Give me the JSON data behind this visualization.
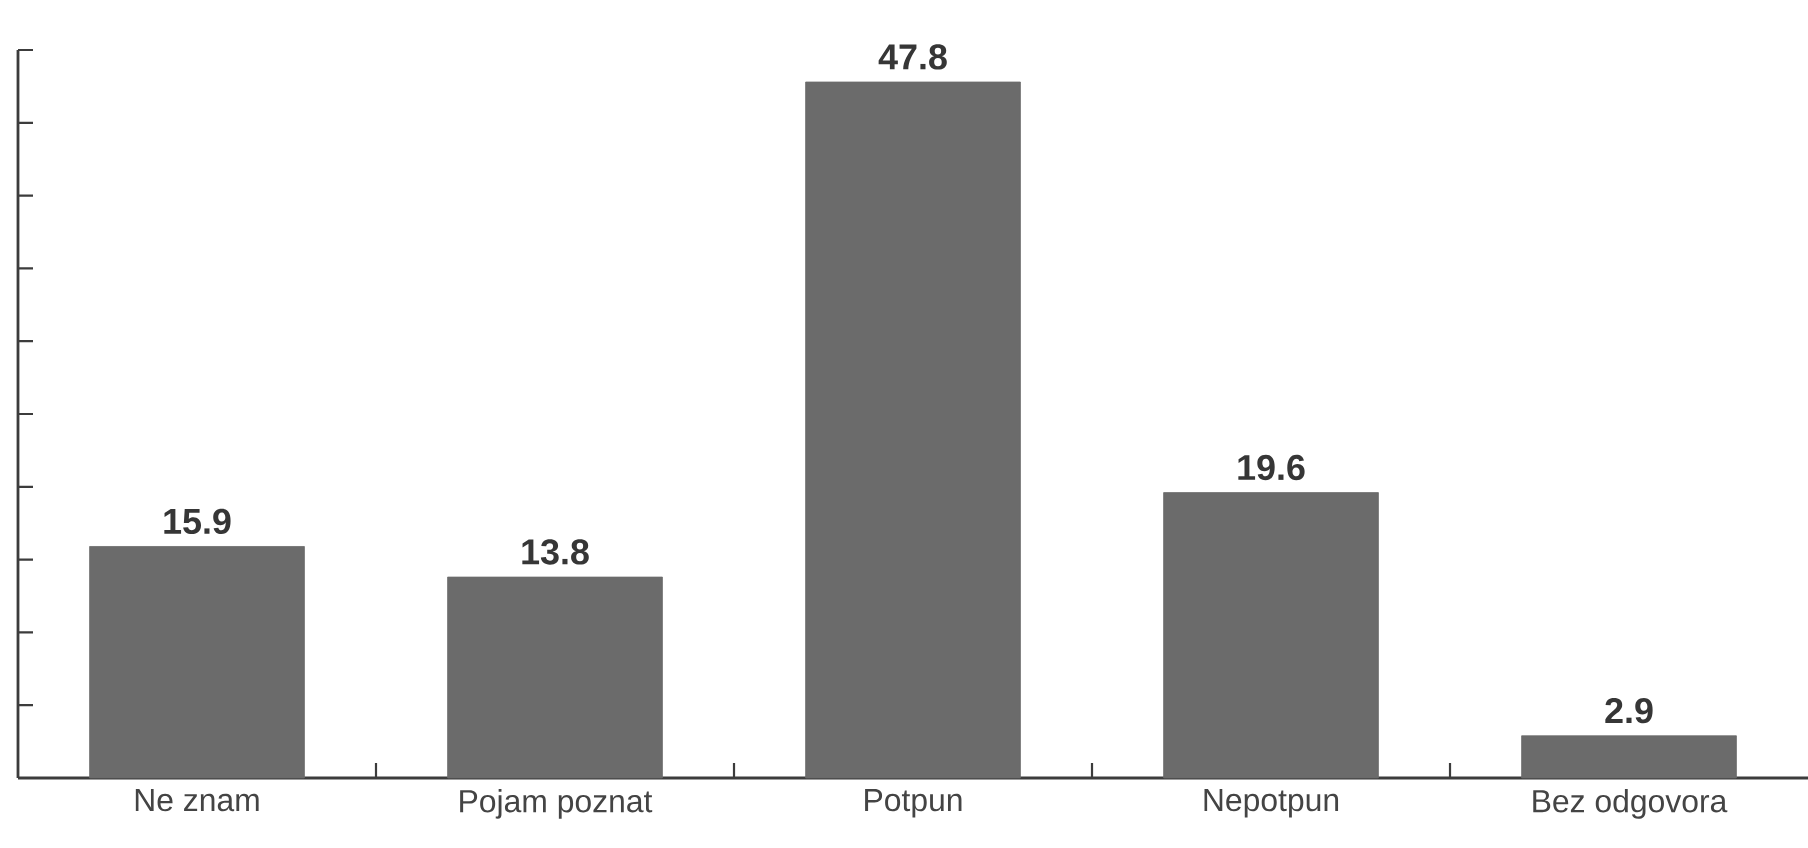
{
  "chart_data": {
    "type": "bar",
    "categories": [
      "Ne znam",
      "Pojam poznat",
      "Potpun",
      "Nepotpun",
      "Bez odgovora"
    ],
    "values": [
      15.9,
      13.8,
      47.8,
      19.6,
      2.9
    ],
    "color": "#6b6b6b",
    "ylim": [
      0,
      50
    ],
    "yticks": [
      {
        "value": 0,
        "label": null
      },
      {
        "value": 5,
        "label": null
      },
      {
        "value": 10,
        "label": null
      },
      {
        "value": 15,
        "label": null
      },
      {
        "value": 20,
        "label": null
      },
      {
        "value": 25,
        "label": null
      },
      {
        "value": 30,
        "label": null
      },
      {
        "value": 35,
        "label": null
      },
      {
        "value": 40,
        "label": null
      },
      {
        "value": 45,
        "label": null
      },
      {
        "value": 50,
        "label": null
      }
    ],
    "tick_labels": "x",
    "data_labels": true
  }
}
